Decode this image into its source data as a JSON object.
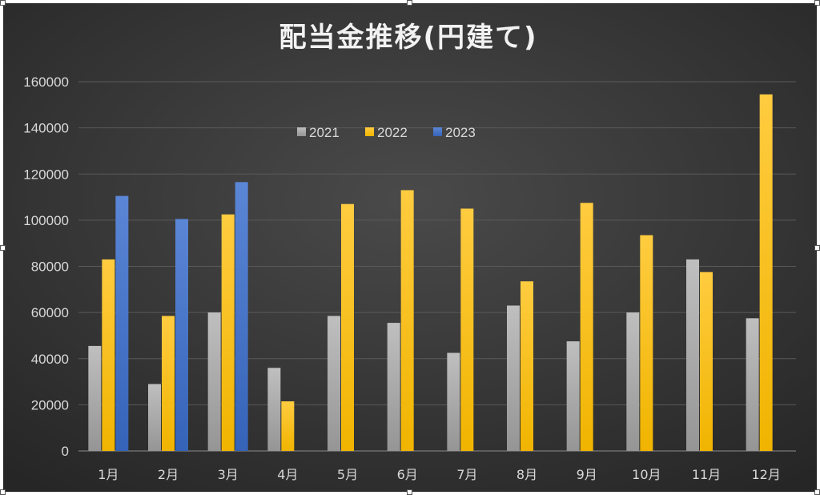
{
  "chart_data": {
    "type": "bar",
    "title": "配当金推移(円建て)",
    "categories": [
      "1月",
      "2月",
      "3月",
      "4月",
      "5月",
      "6月",
      "7月",
      "8月",
      "9月",
      "10月",
      "11月",
      "12月"
    ],
    "series": [
      {
        "name": "2021",
        "color": "#a6a6a6",
        "values": [
          45500,
          29000,
          60000,
          36000,
          58500,
          55500,
          42500,
          63000,
          47500,
          60000,
          83000,
          57500
        ]
      },
      {
        "name": "2022",
        "color": "#ffc000",
        "values": [
          83000,
          58500,
          102500,
          21500,
          107000,
          113000,
          105000,
          73500,
          107500,
          93500,
          77500,
          154500
        ]
      },
      {
        "name": "2023",
        "color": "#4472c4",
        "values": [
          110500,
          100500,
          116500,
          null,
          null,
          null,
          null,
          null,
          null,
          null,
          null,
          null
        ]
      }
    ],
    "ylim": [
      0,
      160000
    ],
    "yticks": [
      "0",
      "20000",
      "40000",
      "60000",
      "80000",
      "100000",
      "120000",
      "140000",
      "160000"
    ],
    "grid": true,
    "legend_position": "top-center",
    "background": "#3a3a3a"
  }
}
